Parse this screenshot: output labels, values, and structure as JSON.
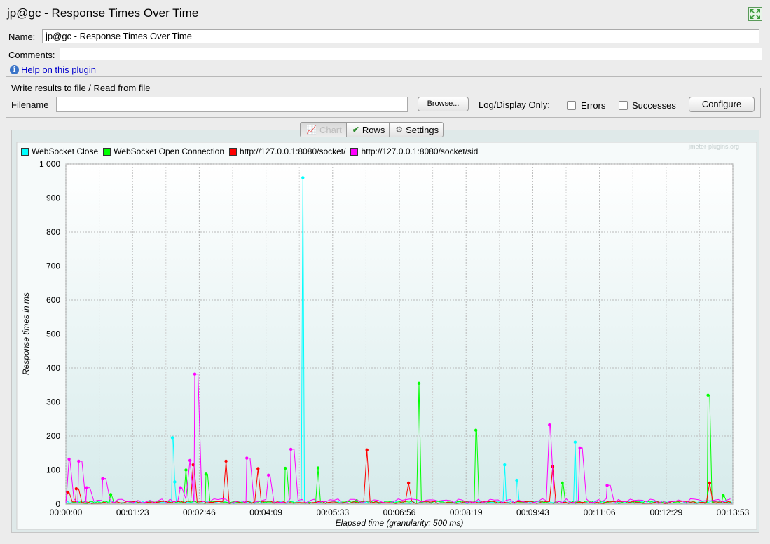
{
  "window": {
    "title": "jp@gc - Response Times Over Time"
  },
  "form": {
    "name_label": "Name:",
    "name_value": "jp@gc - Response Times Over Time",
    "comments_label": "Comments:",
    "help_link": "Help on this plugin"
  },
  "file": {
    "section_title": "Write results to file / Read from file",
    "filename_label": "Filename",
    "filename_value": "",
    "browse_label": "Browse...",
    "log_display_label": "Log/Display Only:",
    "errors_label": "Errors",
    "errors_checked": false,
    "successes_label": "Successes",
    "successes_checked": false,
    "configure_label": "Configure"
  },
  "tabs": [
    {
      "label": "Chart",
      "icon": "chart-icon",
      "active": true
    },
    {
      "label": "Rows",
      "icon": "checkmark-icon",
      "active": false
    },
    {
      "label": "Settings",
      "icon": "gear-icon",
      "active": false
    }
  ],
  "watermark": "jmeter-plugins.org",
  "chart_data": {
    "type": "line",
    "xlabel": "Elapsed time (granularity: 500 ms)",
    "ylabel": "Response times in ms",
    "ylim": [
      0,
      1000
    ],
    "yticks": [
      "0",
      "100",
      "200",
      "300",
      "400",
      "500",
      "600",
      "700",
      "800",
      "900",
      "1 000"
    ],
    "xlim_seconds": [
      0,
      833
    ],
    "xticks": [
      "00:00:00",
      "00:01:23",
      "00:02:46",
      "00:04:09",
      "00:05:33",
      "00:06:56",
      "00:08:19",
      "00:09:43",
      "00:11:06",
      "00:12:29",
      "00:13:53"
    ],
    "legend_position": "top-left",
    "grid": true,
    "series": [
      {
        "name": "WebSocket Close",
        "color": "#00ffff",
        "spikes": [
          [
            133,
            195
          ],
          [
            136,
            65
          ],
          [
            296,
            960
          ],
          [
            548,
            115
          ],
          [
            563,
            70
          ],
          [
            636,
            182
          ]
        ]
      },
      {
        "name": "WebSocket Open Connection",
        "color": "#00ff00",
        "spikes": [
          [
            56,
            28
          ],
          [
            150,
            100
          ],
          [
            175,
            88
          ],
          [
            274,
            105
          ],
          [
            315,
            106
          ],
          [
            363,
            10
          ],
          [
            441,
            355
          ],
          [
            512,
            217
          ],
          [
            620,
            62
          ],
          [
            802,
            320
          ],
          [
            821,
            25
          ]
        ]
      },
      {
        "name": "http://127.0.0.1:8080/socket/",
        "color": "#ff0000",
        "spikes": [
          [
            2,
            35
          ],
          [
            13,
            45
          ],
          [
            159,
            115
          ],
          [
            200,
            126
          ],
          [
            240,
            104
          ],
          [
            376,
            159
          ],
          [
            428,
            62
          ],
          [
            608,
            110
          ],
          [
            804,
            62
          ]
        ]
      },
      {
        "name": "http://127.0.0.1:8080/socket/sid",
        "color": "#ff00ff",
        "spikes": [
          [
            4,
            132
          ],
          [
            16,
            126
          ],
          [
            26,
            48
          ],
          [
            46,
            75
          ],
          [
            143,
            48
          ],
          [
            155,
            128
          ],
          [
            161,
            382
          ],
          [
            226,
            135
          ],
          [
            253,
            85
          ],
          [
            281,
            161
          ],
          [
            604,
            233
          ],
          [
            642,
            165
          ],
          [
            676,
            55
          ]
        ]
      }
    ]
  }
}
